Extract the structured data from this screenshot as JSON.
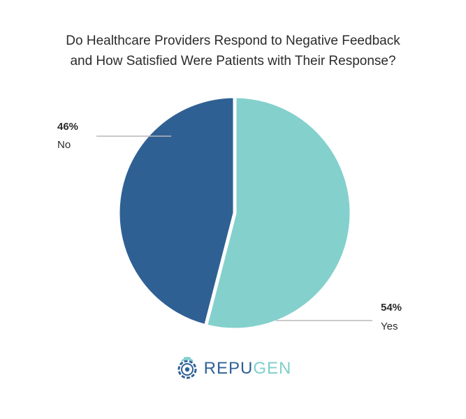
{
  "chart_data": {
    "type": "pie",
    "title": "Do Healthcare Providers Respond to Negative Feedback and How Satisfied Were Patients with Their Response?",
    "title_lines": [
      "Do Healthcare Providers Respond to Negative Feedback",
      "and How Satisfied Were Patients with Their Response?"
    ],
    "slices": [
      {
        "label": "Yes",
        "value": 54,
        "value_label": "54%",
        "color": "#84d0cd"
      },
      {
        "label": "No",
        "value": 46,
        "value_label": "46%",
        "color": "#2f6094"
      }
    ],
    "legend": "none"
  },
  "brand": {
    "name_part1": "REPU",
    "name_part2": "GEN",
    "color_part1": "#2f6196",
    "color_part2": "#7fcfcb",
    "icon": "repugen-gear-icon"
  }
}
